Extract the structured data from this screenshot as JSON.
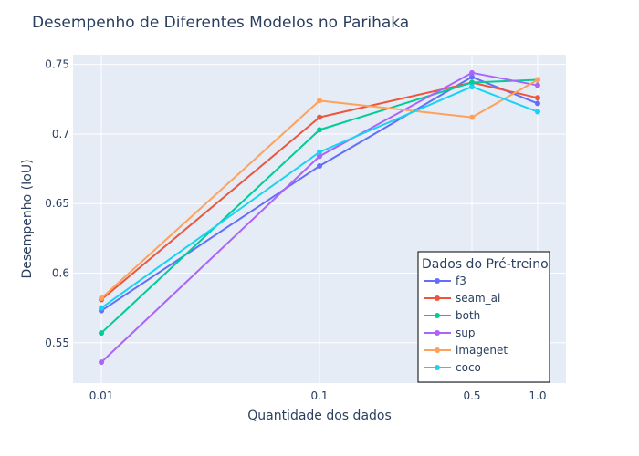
{
  "chart_data": {
    "type": "line",
    "title": "Desempenho de Diferentes Modelos no Parihaka",
    "xlabel": "Quantidade dos dados",
    "ylabel": "Desempenho (IoU)",
    "x_scale": "log",
    "x": [
      0.01,
      0.1,
      0.5,
      1.0
    ],
    "x_tick_labels": [
      "0.01",
      "0.1",
      "0.5",
      "1.0"
    ],
    "ylim": [
      0.521,
      0.757
    ],
    "y_ticks": [
      0.55,
      0.6,
      0.65,
      0.7,
      0.75
    ],
    "y_tick_labels": [
      "0.55",
      "0.6",
      "0.65",
      "0.7",
      "0.75"
    ],
    "grid": true,
    "legend": {
      "title": "Dados do Pré-treino",
      "position": "bottom-right"
    },
    "series": [
      {
        "name": "f3",
        "color": "#636efa",
        "values": [
          0.573,
          0.677,
          0.741,
          0.722
        ]
      },
      {
        "name": "seam_ai",
        "color": "#ef553b",
        "values": [
          0.581,
          0.712,
          0.737,
          0.726
        ]
      },
      {
        "name": "both",
        "color": "#00cc96",
        "values": [
          0.557,
          0.703,
          0.737,
          0.739
        ]
      },
      {
        "name": "sup",
        "color": "#ab63fa",
        "values": [
          0.536,
          0.684,
          0.744,
          0.735
        ]
      },
      {
        "name": "imagenet",
        "color": "#ffa15a",
        "values": [
          0.582,
          0.724,
          0.712,
          0.739
        ]
      },
      {
        "name": "coco",
        "color": "#19d3f3",
        "values": [
          0.575,
          0.687,
          0.734,
          0.716
        ]
      }
    ]
  }
}
